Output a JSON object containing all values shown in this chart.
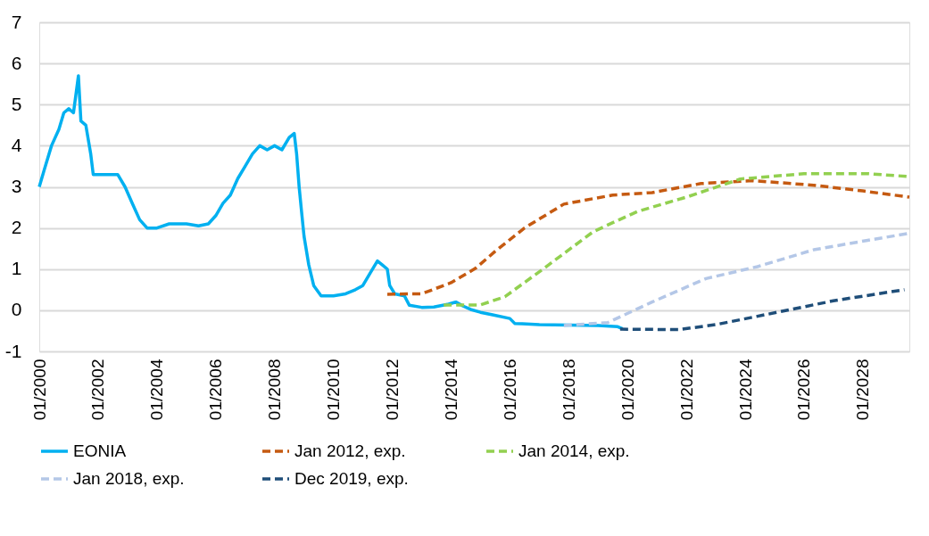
{
  "chart_data": {
    "type": "line",
    "xlim": [
      "2000-01",
      "2029-08"
    ],
    "ylim": [
      -1,
      7
    ],
    "yticks": [
      -1,
      0,
      1,
      2,
      3,
      4,
      5,
      6,
      7
    ],
    "xticks": [
      {
        "value": "2000-01",
        "label": "01/2000"
      },
      {
        "value": "2002-01",
        "label": "01/2002"
      },
      {
        "value": "2004-01",
        "label": "01/2004"
      },
      {
        "value": "2006-01",
        "label": "01/2006"
      },
      {
        "value": "2008-01",
        "label": "01/2008"
      },
      {
        "value": "2010-01",
        "label": "01/2010"
      },
      {
        "value": "2012-01",
        "label": "01/2012"
      },
      {
        "value": "2014-01",
        "label": "01/2014"
      },
      {
        "value": "2016-01",
        "label": "01/2016"
      },
      {
        "value": "2018-01",
        "label": "01/2018"
      },
      {
        "value": "2020-01",
        "label": "01/2020"
      },
      {
        "value": "2022-01",
        "label": "01/2022"
      },
      {
        "value": "2024-01",
        "label": "01/2024"
      },
      {
        "value": "2026-01",
        "label": "01/2026"
      },
      {
        "value": "2028-01",
        "label": "01/2028"
      }
    ],
    "grid": "y",
    "legend": "bottom",
    "marker": "none",
    "series": [
      {
        "name": "EONIA",
        "color": "#00b0f0",
        "line_style": "solid",
        "x": [
          "2000-01",
          "2000-03",
          "2000-06",
          "2000-09",
          "2000-11",
          "2001-01",
          "2001-03",
          "2001-05",
          "2001-06",
          "2001-08",
          "2001-10",
          "2001-11",
          "2002-01",
          "2002-06",
          "2002-09",
          "2002-12",
          "2003-03",
          "2003-06",
          "2003-09",
          "2004-01",
          "2004-06",
          "2005-01",
          "2005-06",
          "2005-10",
          "2006-01",
          "2006-04",
          "2006-07",
          "2006-10",
          "2007-01",
          "2007-04",
          "2007-07",
          "2007-10",
          "2008-01",
          "2008-04",
          "2008-07",
          "2008-09",
          "2008-10",
          "2008-11",
          "2008-12",
          "2009-01",
          "2009-03",
          "2009-05",
          "2009-08",
          "2010-01",
          "2010-06",
          "2010-10",
          "2011-01",
          "2011-04",
          "2011-07",
          "2011-09",
          "2011-11",
          "2011-12",
          "2012-02",
          "2012-06",
          "2012-08",
          "2013-01",
          "2013-06",
          "2013-12",
          "2014-03",
          "2014-06",
          "2014-09",
          "2015-01",
          "2015-06",
          "2016-01",
          "2016-03",
          "2016-06",
          "2017-01",
          "2018-01",
          "2019-01",
          "2019-09",
          "2019-11"
        ],
        "values": [
          3.0,
          3.4,
          4.0,
          4.4,
          4.8,
          4.9,
          4.8,
          5.7,
          4.6,
          4.5,
          3.8,
          3.3,
          3.3,
          3.3,
          3.3,
          3.0,
          2.6,
          2.2,
          2.0,
          2.0,
          2.1,
          2.1,
          2.05,
          2.1,
          2.3,
          2.6,
          2.8,
          3.2,
          3.5,
          3.8,
          4.0,
          3.9,
          4.0,
          3.9,
          4.2,
          4.3,
          3.8,
          3.0,
          2.4,
          1.8,
          1.1,
          0.6,
          0.35,
          0.35,
          0.4,
          0.5,
          0.6,
          0.9,
          1.2,
          1.1,
          1.0,
          0.6,
          0.4,
          0.35,
          0.12,
          0.07,
          0.08,
          0.15,
          0.2,
          0.1,
          0.02,
          -0.05,
          -0.11,
          -0.2,
          -0.32,
          -0.33,
          -0.35,
          -0.36,
          -0.37,
          -0.4,
          -0.45
        ]
      },
      {
        "name": "Jan 2012, exp.",
        "color": "#c55a11",
        "line_style": "dashed",
        "x": [
          "2011-11",
          "2013-01",
          "2014-01",
          "2014-11",
          "2015-07",
          "2016-07",
          "2017-11",
          "2019-07",
          "2020-11",
          "2022-07",
          "2024-04",
          "2026-05",
          "2028-01",
          "2029-08"
        ],
        "values": [
          0.39,
          0.4,
          0.67,
          1.02,
          1.43,
          2.0,
          2.58,
          2.8,
          2.86,
          3.08,
          3.15,
          3.04,
          2.9,
          2.75
        ]
      },
      {
        "name": "Jan 2014, exp.",
        "color": "#92d050",
        "line_style": "dashed",
        "x": [
          "2013-10",
          "2015-01",
          "2015-11",
          "2017-02",
          "2018-11",
          "2020-05",
          "2022-01",
          "2023-11",
          "2026-01",
          "2028-03",
          "2029-08"
        ],
        "values": [
          0.13,
          0.13,
          0.33,
          0.98,
          1.91,
          2.4,
          2.75,
          3.19,
          3.32,
          3.32,
          3.25
        ]
      },
      {
        "name": "Jan 2018, exp.",
        "color": "#b4c7e7",
        "line_style": "dashed",
        "x": [
          "2017-11",
          "2019-05",
          "2020-11",
          "2022-09",
          "2024-06",
          "2026-05",
          "2028-03",
          "2029-08"
        ],
        "values": [
          -0.37,
          -0.3,
          0.2,
          0.77,
          1.06,
          1.47,
          1.7,
          1.87
        ]
      },
      {
        "name": "Dec 2019, exp.",
        "color": "#1f4e79",
        "line_style": "dashed",
        "x": [
          "2019-10",
          "2021-10",
          "2023-01",
          "2025-02",
          "2027-01",
          "2029-06"
        ],
        "values": [
          -0.46,
          -0.47,
          -0.35,
          -0.05,
          0.23,
          0.5
        ]
      }
    ]
  }
}
